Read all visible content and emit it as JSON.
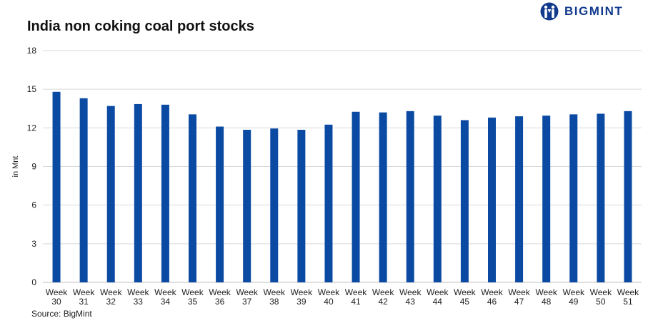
{
  "brand": {
    "name": "BIGMINT",
    "logo_icon": "bigmint-logo-icon",
    "color": "#123a8c"
  },
  "source": "Source: BigMint",
  "chart_data": {
    "type": "bar",
    "title": "India non coking coal port stocks",
    "xlabel": "",
    "ylabel": "in Mnt",
    "ylim": [
      0,
      18
    ],
    "yticks": [
      0,
      3,
      6,
      9,
      12,
      15,
      18
    ],
    "grid": true,
    "legend": "none",
    "bar_color": "#0b4aa2",
    "categories": [
      [
        "Week",
        "30"
      ],
      [
        "Week",
        "31"
      ],
      [
        "Week",
        "32"
      ],
      [
        "Week",
        "33"
      ],
      [
        "Week",
        "34"
      ],
      [
        "Week",
        "35"
      ],
      [
        "Week",
        "36"
      ],
      [
        "Week",
        "37"
      ],
      [
        "Week",
        "38"
      ],
      [
        "Week",
        "39"
      ],
      [
        "Week",
        "40"
      ],
      [
        "Week",
        "41"
      ],
      [
        "Week",
        "42"
      ],
      [
        "Week",
        "43"
      ],
      [
        "Week",
        "44"
      ],
      [
        "Week",
        "45"
      ],
      [
        "Week",
        "46"
      ],
      [
        "Week",
        "47"
      ],
      [
        "Week",
        "48"
      ],
      [
        "Week",
        "49"
      ],
      [
        "Week",
        "50"
      ],
      [
        "Week",
        "51"
      ]
    ],
    "values": [
      14.8,
      14.3,
      13.7,
      13.85,
      13.8,
      13.05,
      12.1,
      11.85,
      11.95,
      11.85,
      12.25,
      13.25,
      13.2,
      13.3,
      12.95,
      12.6,
      12.8,
      12.9,
      12.95,
      13.05,
      13.1,
      13.3
    ]
  }
}
